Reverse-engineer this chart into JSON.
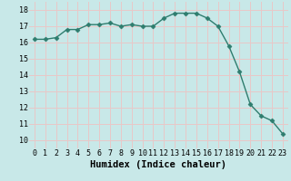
{
  "x": [
    0,
    1,
    2,
    3,
    4,
    5,
    6,
    7,
    8,
    9,
    10,
    11,
    12,
    13,
    14,
    15,
    16,
    17,
    18,
    19,
    20,
    21,
    22,
    23
  ],
  "y": [
    16.2,
    16.2,
    16.3,
    16.8,
    16.8,
    17.1,
    17.1,
    17.2,
    17.0,
    17.1,
    17.0,
    17.0,
    17.5,
    17.8,
    17.8,
    17.8,
    17.5,
    17.0,
    15.8,
    14.2,
    12.2,
    11.5,
    11.2,
    10.4
  ],
  "line_color": "#2e7d6e",
  "marker": "D",
  "marker_size": 2.5,
  "line_width": 1.0,
  "bg_color": "#c8e8e8",
  "grid_color": "#e8c8c8",
  "xlabel": "Humidex (Indice chaleur)",
  "xlim": [
    -0.5,
    23.5
  ],
  "ylim": [
    9.5,
    18.5
  ],
  "yticks": [
    10,
    11,
    12,
    13,
    14,
    15,
    16,
    17,
    18
  ],
  "xticks": [
    0,
    1,
    2,
    3,
    4,
    5,
    6,
    7,
    8,
    9,
    10,
    11,
    12,
    13,
    14,
    15,
    16,
    17,
    18,
    19,
    20,
    21,
    22,
    23
  ],
  "tick_fontsize": 6,
  "xlabel_fontsize": 7.5
}
